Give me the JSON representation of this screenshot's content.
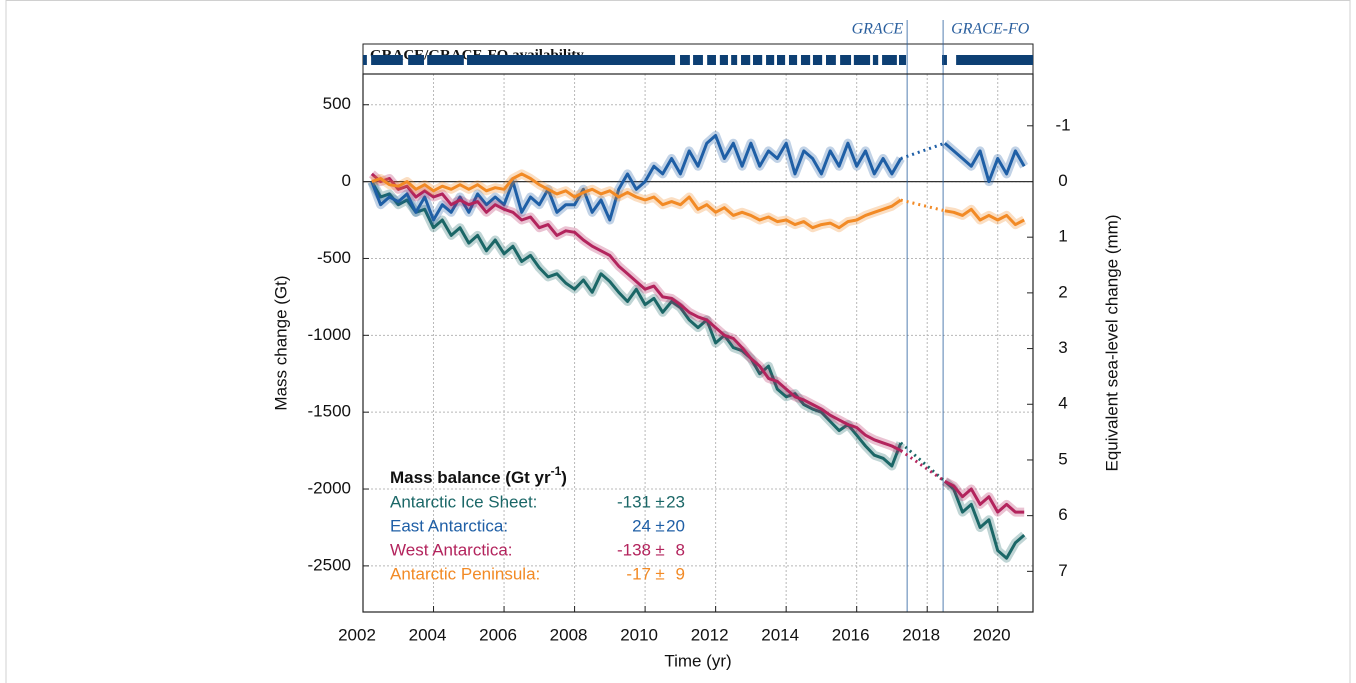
{
  "chart_data": {
    "type": "line",
    "availability_title": "GRACE/GRACE-FO availability",
    "availability": [
      [
        2002.0,
        2002.11
      ],
      [
        2002.23,
        2003.13
      ],
      [
        2003.28,
        2003.73
      ],
      [
        2003.82,
        2004.86
      ],
      [
        2004.95,
        2010.85
      ],
      [
        2010.99,
        2011.27
      ],
      [
        2011.36,
        2011.64
      ],
      [
        2011.76,
        2012.01
      ],
      [
        2012.12,
        2012.35
      ],
      [
        2012.44,
        2012.61
      ],
      [
        2012.72,
        2012.98
      ],
      [
        2013.06,
        2013.32
      ],
      [
        2013.43,
        2013.66
      ],
      [
        2013.74,
        2013.97
      ],
      [
        2014.08,
        2014.31
      ],
      [
        2014.42,
        2014.68
      ],
      [
        2014.76,
        2015.02
      ],
      [
        2015.13,
        2015.41
      ],
      [
        2015.53,
        2015.84
      ],
      [
        2015.92,
        2016.38
      ],
      [
        2016.46,
        2016.61
      ],
      [
        2016.72,
        2017.14
      ],
      [
        2017.2,
        2017.4
      ],
      [
        2018.42,
        2018.56
      ],
      [
        2018.82,
        2021.0
      ]
    ],
    "availability_color": "#0d3f73",
    "missions": [
      {
        "label": "GRACE",
        "x": 2017.43
      },
      {
        "label": "GRACE-FO",
        "x": 2018.45
      }
    ],
    "xlabel": "Time (yr)",
    "ylabel": "Mass change (Gt)",
    "y2label": "Equivalent sea-level change (mm)",
    "xlim": [
      2002,
      2021
    ],
    "xticks": [
      2002,
      2004,
      2006,
      2008,
      2010,
      2012,
      2014,
      2016,
      2018,
      2020
    ],
    "ylim": [
      -2800,
      700
    ],
    "yticks": [
      500,
      0,
      -500,
      -1000,
      -1500,
      -2000,
      -2500
    ],
    "y2lim": [
      7.73,
      -1.93
    ],
    "y2ticks": [
      -1,
      0,
      1,
      2,
      3,
      4,
      5,
      6,
      7
    ],
    "grid": true,
    "legend_title": {
      "text": "Mass balance (Gt yr",
      "sup": "-1",
      "end": ")"
    },
    "legend_separator": "±",
    "x": [
      2002.25,
      2002.5,
      2002.75,
      2003,
      2003.25,
      2003.5,
      2003.75,
      2004,
      2004.25,
      2004.5,
      2004.75,
      2005,
      2005.25,
      2005.5,
      2005.75,
      2006,
      2006.25,
      2006.5,
      2006.75,
      2007,
      2007.25,
      2007.5,
      2007.75,
      2008,
      2008.25,
      2008.5,
      2008.75,
      2009,
      2009.25,
      2009.5,
      2009.75,
      2010,
      2010.25,
      2010.5,
      2010.75,
      2011,
      2011.25,
      2011.5,
      2011.75,
      2012,
      2012.25,
      2012.5,
      2012.75,
      2013,
      2013.25,
      2013.5,
      2013.75,
      2014,
      2014.25,
      2014.5,
      2014.75,
      2015,
      2015.25,
      2015.5,
      2015.75,
      2016,
      2016.25,
      2016.5,
      2016.75,
      2017,
      2017.25,
      2017.5,
      2017.75,
      2018,
      2018.25,
      2018.5,
      2018.75,
      2019,
      2019.25,
      2019.5,
      2019.75,
      2020,
      2020.25,
      2020.5,
      2020.75
    ],
    "series": [
      {
        "name": "Antarctic Ice Sheet:",
        "color": "#1b6767",
        "rate": -131,
        "rate_error": 23,
        "values": [
          0,
          -100,
          -80,
          -150,
          -120,
          -200,
          -180,
          -300,
          -250,
          -350,
          -300,
          -400,
          -350,
          -450,
          -380,
          -470,
          -420,
          -520,
          -480,
          -560,
          -620,
          -600,
          -660,
          -700,
          -640,
          -720,
          -600,
          -650,
          -720,
          -780,
          -700,
          -800,
          -760,
          -850,
          -780,
          -820,
          -900,
          -950,
          -900,
          -1050,
          -1000,
          -1080,
          -1100,
          -1150,
          -1250,
          -1200,
          -1350,
          -1400,
          -1380,
          -1450,
          -1480,
          -1500,
          -1560,
          -1620,
          -1580,
          -1650,
          -1720,
          -1780,
          -1800,
          -1850,
          -1700,
          null,
          null,
          null,
          null,
          -1950,
          -2000,
          -2150,
          -2100,
          -2250,
          -2200,
          -2400,
          -2450,
          -2350,
          -2300
        ]
      },
      {
        "name": "East Antarctica:",
        "color": "#1f5fa6",
        "rate": 24,
        "rate_error": 20,
        "values": [
          0,
          -150,
          -100,
          -130,
          -80,
          -200,
          -100,
          -250,
          -150,
          -200,
          -100,
          -200,
          -80,
          -150,
          -100,
          -150,
          0,
          -200,
          -100,
          -150,
          -50,
          -200,
          -150,
          -150,
          -50,
          -200,
          -120,
          -250,
          -50,
          50,
          -50,
          0,
          100,
          50,
          150,
          50,
          200,
          100,
          250,
          300,
          150,
          250,
          100,
          250,
          100,
          200,
          150,
          250,
          50,
          200,
          150,
          50,
          200,
          100,
          250,
          100,
          200,
          50,
          150,
          50,
          150,
          null,
          null,
          null,
          null,
          250,
          200,
          150,
          100,
          200,
          0,
          150,
          50,
          200,
          100
        ]
      },
      {
        "name": "West Antarctica:",
        "color": "#b3245d",
        "rate": -138,
        "rate_error": 8,
        "values": [
          50,
          0,
          20,
          -50,
          -30,
          -100,
          -60,
          -100,
          -80,
          -150,
          -120,
          -150,
          -130,
          -200,
          -150,
          -180,
          -200,
          -250,
          -230,
          -300,
          -280,
          -350,
          -320,
          -330,
          -380,
          -420,
          -450,
          -480,
          -550,
          -600,
          -650,
          -700,
          -680,
          -750,
          -760,
          -800,
          -850,
          -880,
          -900,
          -950,
          -1000,
          -1020,
          -1080,
          -1150,
          -1200,
          -1280,
          -1300,
          -1350,
          -1400,
          -1420,
          -1450,
          -1480,
          -1520,
          -1550,
          -1580,
          -1600,
          -1650,
          -1680,
          -1700,
          -1720,
          -1750,
          null,
          null,
          null,
          null,
          -1950,
          -1980,
          -2050,
          -2000,
          -2100,
          -2050,
          -2150,
          -2100,
          -2150,
          -2150
        ]
      },
      {
        "name": "Antarctic Peninsula:",
        "color": "#f28a25",
        "rate": -17,
        "rate_error": 9,
        "values": [
          0,
          20,
          -20,
          -30,
          0,
          -50,
          -20,
          -60,
          -30,
          -50,
          -20,
          -50,
          -20,
          -60,
          -40,
          -50,
          20,
          50,
          20,
          -20,
          -50,
          -80,
          -60,
          -100,
          -70,
          -50,
          -80,
          -60,
          -100,
          -70,
          -100,
          -120,
          -100,
          -150,
          -130,
          -150,
          -100,
          -180,
          -150,
          -200,
          -170,
          -220,
          -200,
          -220,
          -250,
          -230,
          -260,
          -250,
          -280,
          -260,
          -300,
          -280,
          -270,
          -300,
          -260,
          -250,
          -220,
          -200,
          -180,
          -160,
          -120,
          null,
          null,
          null,
          null,
          -190,
          -200,
          -220,
          -180,
          -250,
          -220,
          -250,
          -220,
          -280,
          -250
        ]
      }
    ]
  }
}
